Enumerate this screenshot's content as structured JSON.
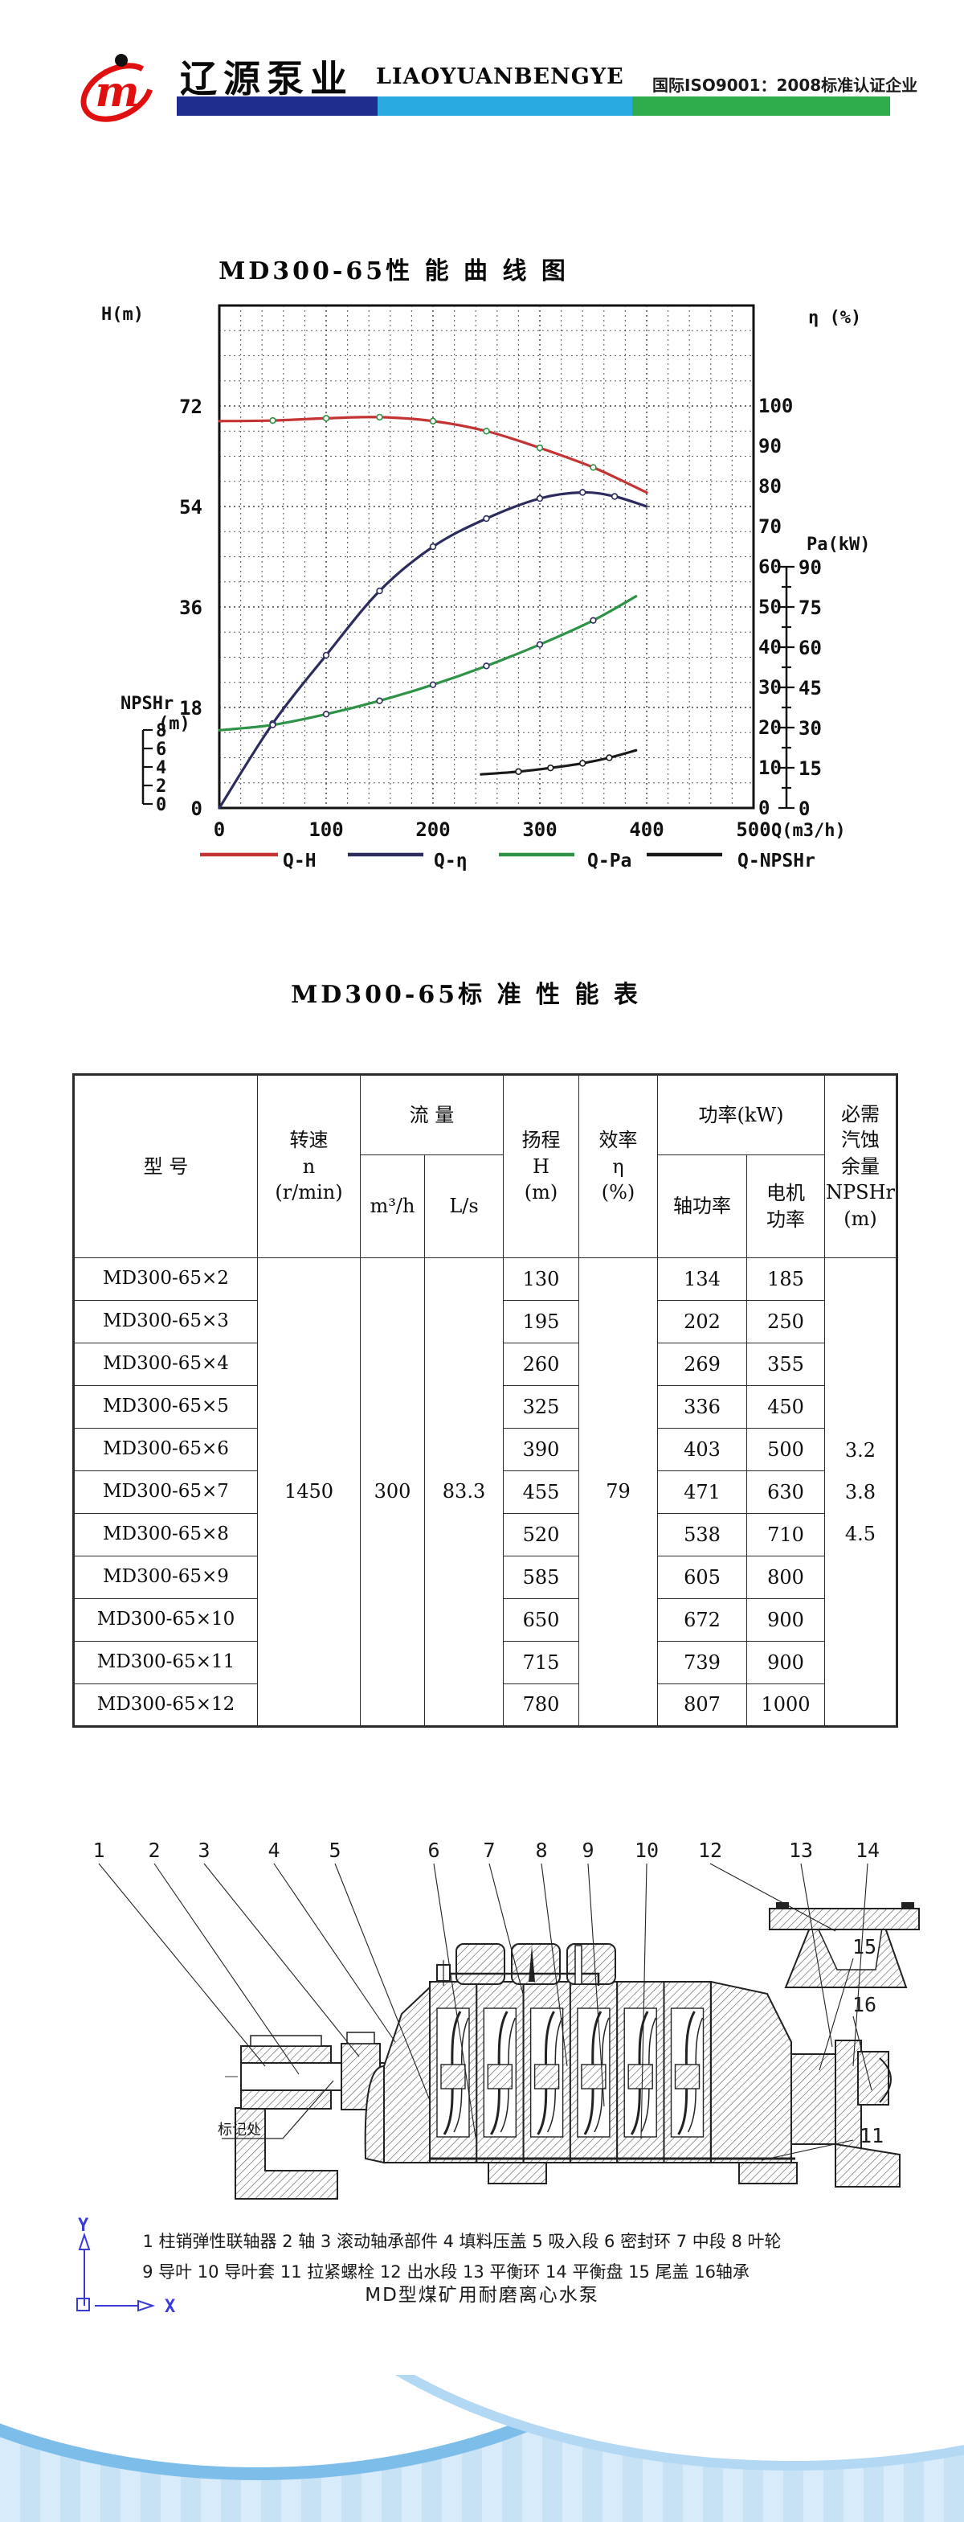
{
  "header": {
    "logo_icon": "jm-monogram",
    "logo_letter": "m",
    "brand_cn": "辽源泵业",
    "brand_en": "LIAOYUANBENGYE",
    "certification": "国际ISO9001：2008标准认证企业",
    "bar_colors": {
      "blue": "#1f2d8e",
      "cyan": "#29aae1",
      "green": "#2fac4b"
    }
  },
  "curve_section": {
    "title": "MD300-65性 能 曲 线 图"
  },
  "chart_data": {
    "type": "line",
    "title": "MD300-65性 能 曲 线 图",
    "grid": "dotted, minor x every 20, minor y every 4.5",
    "x_axis": {
      "label": "Q(m3/h)",
      "range": [
        0,
        500
      ],
      "ticks": [
        0,
        100,
        200,
        300,
        400,
        500
      ]
    },
    "left_axis_H": {
      "label": "H(m)",
      "range": [
        0,
        90
      ],
      "ticks": [
        0,
        18,
        36,
        54,
        72
      ]
    },
    "right_axis_eta": {
      "label": "η (%)",
      "range": [
        0,
        100
      ],
      "ticks": [
        0,
        10,
        20,
        30,
        40,
        50,
        60,
        70,
        80,
        90,
        100
      ]
    },
    "right_axis_pa": {
      "label": "Pa(kW)",
      "range": [
        0,
        90
      ],
      "ticks": [
        0,
        15,
        30,
        45,
        60,
        75,
        90
      ]
    },
    "npshr_axis": {
      "label": "NPSHr",
      "unit": "(m)",
      "range": [
        0,
        8
      ],
      "ticks": [
        0,
        2,
        4,
        6,
        8
      ]
    },
    "series": [
      {
        "name": "Q-H",
        "axis": "H",
        "color": "#c43434",
        "marker_color": "#2e9247",
        "points": [
          [
            0,
            69.3
          ],
          [
            50,
            69.4
          ],
          [
            100,
            69.8
          ],
          [
            150,
            70.0
          ],
          [
            200,
            69.3
          ],
          [
            250,
            67.5
          ],
          [
            300,
            64.5
          ],
          [
            350,
            61.0
          ],
          [
            400,
            56.5
          ]
        ]
      },
      {
        "name": "Q-η",
        "axis": "eta",
        "color": "#2c2c5e",
        "marker_color": "#2c2c5e",
        "points": [
          [
            0,
            0
          ],
          [
            50,
            21
          ],
          [
            100,
            38
          ],
          [
            150,
            54
          ],
          [
            200,
            65
          ],
          [
            250,
            72
          ],
          [
            300,
            77
          ],
          [
            340,
            78.5
          ],
          [
            370,
            77.5
          ],
          [
            400,
            75
          ]
        ]
      },
      {
        "name": "Q-Pa",
        "axis": "pa",
        "color": "#2e9247",
        "marker_color": "#2c2c5e",
        "points": [
          [
            0,
            29
          ],
          [
            50,
            31
          ],
          [
            100,
            35
          ],
          [
            150,
            40
          ],
          [
            200,
            46
          ],
          [
            250,
            53
          ],
          [
            300,
            61
          ],
          [
            350,
            70
          ],
          [
            390,
            79
          ]
        ]
      },
      {
        "name": "Q-NPSHr",
        "axis": "npshr",
        "color": "#1a1a1a",
        "marker_color": "#1a1a1a",
        "points": [
          [
            245,
            3.2
          ],
          [
            280,
            3.5
          ],
          [
            310,
            3.9
          ],
          [
            340,
            4.4
          ],
          [
            365,
            5.0
          ],
          [
            390,
            5.8
          ]
        ]
      }
    ],
    "legend": [
      "Q-H",
      "Q-η",
      "Q-Pa",
      "Q-NPSHr"
    ],
    "legend_position": "bottom"
  },
  "table_section": {
    "title": "MD300-65标 准 性 能 表",
    "headers": {
      "model": "型 号",
      "speed": "转速\nn\n(r/min)",
      "flow_group": "流 量",
      "flow_m3h": "m³/h",
      "flow_ls": "L/s",
      "head": "扬程\nH\n(m)",
      "efficiency": "效率\nη\n(%)",
      "power_group": "功率(kW)",
      "shaft_power": "轴功率",
      "motor_power": "电机\n功率",
      "npshr": "必需\n汽蚀\n余量\nNPSHr\n(m)"
    },
    "shared": {
      "speed": "1450",
      "flow_m3h": "300",
      "flow_ls": "83.3",
      "efficiency": "79",
      "npshr": "3.2\n3.8\n4.5"
    },
    "rows": [
      {
        "model": "MD300-65×2",
        "head": "130",
        "shaft": "134",
        "motor": "185"
      },
      {
        "model": "MD300-65×3",
        "head": "195",
        "shaft": "202",
        "motor": "250"
      },
      {
        "model": "MD300-65×4",
        "head": "260",
        "shaft": "269",
        "motor": "355"
      },
      {
        "model": "MD300-65×5",
        "head": "325",
        "shaft": "336",
        "motor": "450"
      },
      {
        "model": "MD300-65×6",
        "head": "390",
        "shaft": "403",
        "motor": "500"
      },
      {
        "model": "MD300-65×7",
        "head": "455",
        "shaft": "471",
        "motor": "630"
      },
      {
        "model": "MD300-65×8",
        "head": "520",
        "shaft": "538",
        "motor": "710"
      },
      {
        "model": "MD300-65×9",
        "head": "585",
        "shaft": "605",
        "motor": "800"
      },
      {
        "model": "MD300-65×10",
        "head": "650",
        "shaft": "672",
        "motor": "900"
      },
      {
        "model": "MD300-65×11",
        "head": "715",
        "shaft": "739",
        "motor": "900"
      },
      {
        "model": "MD300-65×12",
        "head": "780",
        "shaft": "807",
        "motor": "1000"
      }
    ]
  },
  "diagram": {
    "part_numbers_top": [
      "1",
      "2",
      "3",
      "4",
      "5",
      "6",
      "7",
      "8",
      "9",
      "10",
      "12",
      "13",
      "14"
    ],
    "part_numbers_right": [
      "15",
      "16"
    ],
    "part_number_bottom": "11",
    "mark_label": "标记处",
    "legend_line1": "1  柱销弹性联轴器   2  轴   3  滚动轴承部件   4  填料压盖   5  吸入段   6  密封环   7  中段   8  叶轮",
    "legend_line2": "9  导叶   10  导叶套   11  拉紧螺栓   12  出水段   13  平衡环   14  平衡盘   15  尾盖   16轴承",
    "caption": "MD型煤矿用耐磨离心水泵",
    "axis_x": "X",
    "axis_y": "Y"
  }
}
